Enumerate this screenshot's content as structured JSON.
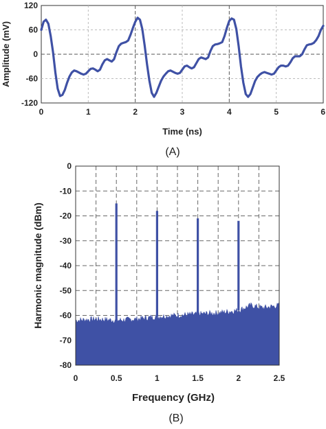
{
  "chart_data": [
    {
      "panel_label": "(A)",
      "type": "line",
      "xlabel": "Time (ns)",
      "ylabel": "Amplitude (mV)",
      "xlim": [
        0,
        6
      ],
      "ylim": [
        -120,
        120
      ],
      "xticks": [
        "0",
        "1",
        "2",
        "3",
        "4",
        "5",
        "6"
      ],
      "yticks": [
        "120",
        "60",
        "0",
        "-60",
        "-120"
      ],
      "grid": true,
      "color": "#3f51a5",
      "series": [
        {
          "x": [
            0,
            0.05,
            0.1,
            0.15,
            0.2,
            0.25,
            0.3,
            0.35,
            0.4,
            0.45,
            0.5,
            0.55,
            0.6,
            0.65,
            0.7,
            0.75,
            0.8,
            0.85,
            0.9,
            0.95,
            1.0,
            1.05,
            1.1,
            1.15,
            1.2,
            1.25,
            1.3,
            1.35,
            1.4,
            1.45,
            1.5,
            1.55,
            1.6,
            1.65,
            1.7,
            1.75,
            1.8,
            1.85,
            1.9,
            1.95,
            2.0,
            2.05,
            2.1,
            2.15,
            2.2,
            2.25,
            2.3,
            2.35,
            2.4,
            2.45,
            2.5,
            2.55,
            2.6,
            2.65,
            2.7,
            2.75,
            2.8,
            2.85,
            2.9,
            2.95,
            3.0,
            3.05,
            3.1,
            3.15,
            3.2,
            3.25,
            3.3,
            3.35,
            3.4,
            3.45,
            3.5,
            3.55,
            3.6,
            3.65,
            3.7,
            3.75,
            3.8,
            3.85,
            3.9,
            3.95,
            4.0,
            4.05,
            4.1,
            4.15,
            4.2,
            4.25,
            4.3,
            4.35,
            4.4,
            4.45,
            4.5,
            4.55,
            4.6,
            4.65,
            4.7,
            4.75,
            4.8,
            4.85,
            4.9,
            4.95,
            5.0,
            5.05,
            5.1,
            5.15,
            5.2,
            5.25,
            5.3,
            5.35,
            5.4,
            5.45,
            5.5,
            5.55,
            5.6,
            5.65,
            5.7,
            5.75,
            5.8,
            5.85,
            5.9,
            5.95,
            6.0
          ],
          "y": [
            60,
            80,
            85,
            75,
            45,
            5,
            -45,
            -85,
            -103,
            -100,
            -88,
            -70,
            -55,
            -45,
            -40,
            -42,
            -45,
            -48,
            -50,
            -48,
            -42,
            -36,
            -35,
            -38,
            -42,
            -38,
            -25,
            -15,
            -12,
            -15,
            -18,
            -12,
            5,
            20,
            26,
            28,
            30,
            34,
            48,
            65,
            80,
            90,
            85,
            62,
            22,
            -25,
            -65,
            -95,
            -105,
            -95,
            -80,
            -65,
            -55,
            -48,
            -42,
            -40,
            -43,
            -46,
            -48,
            -46,
            -38,
            -30,
            -28,
            -32,
            -35,
            -32,
            -22,
            -12,
            -8,
            -10,
            -12,
            -8,
            8,
            20,
            24,
            25,
            27,
            30,
            45,
            65,
            82,
            88,
            85,
            62,
            20,
            -30,
            -70,
            -98,
            -105,
            -98,
            -82,
            -66,
            -56,
            -50,
            -46,
            -44,
            -46,
            -48,
            -50,
            -48,
            -40,
            -32,
            -28,
            -28,
            -30,
            -28,
            -20,
            -10,
            -5,
            -5,
            -5,
            0,
            12,
            22,
            24,
            25,
            28,
            35,
            45,
            60,
            70
          ]
        }
      ]
    },
    {
      "panel_label": "(B)",
      "type": "line",
      "xlabel": "Frequency (GHz)",
      "ylabel": "Harmonic magnitude (dBm)",
      "xlim": [
        0,
        2.5
      ],
      "ylim": [
        -80,
        0
      ],
      "xticks": [
        "0",
        "0.5",
        "1",
        "1.5",
        "2",
        "2.5"
      ],
      "yticks": [
        "0",
        "-10",
        "-20",
        "-30",
        "-40",
        "-50",
        "-60",
        "-70",
        "-80"
      ],
      "grid": true,
      "color": "#3f51a5",
      "noise_floor": {
        "x": [
          0,
          0.25,
          0.5,
          0.75,
          1.0,
          1.25,
          1.5,
          1.75,
          2.0,
          2.15,
          2.3,
          2.5
        ],
        "y": [
          -62,
          -61.5,
          -62,
          -61.5,
          -60.5,
          -60,
          -59.5,
          -59,
          -58,
          -56,
          -57,
          -56
        ]
      },
      "peaks": [
        {
          "x": 0.5,
          "y": -15
        },
        {
          "x": 1.0,
          "y": -18
        },
        {
          "x": 1.5,
          "y": -21
        },
        {
          "x": 2.0,
          "y": -22
        }
      ]
    }
  ]
}
